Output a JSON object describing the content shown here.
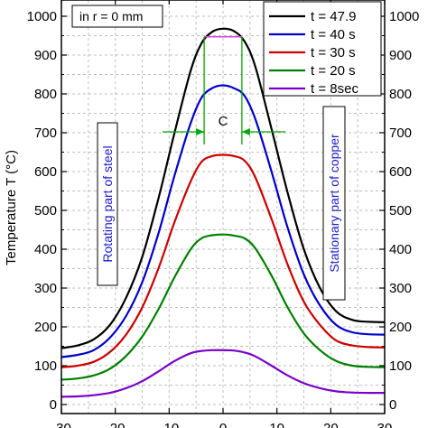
{
  "chart_data": {
    "type": "line",
    "xlabel": "",
    "ylabel": "Temperature  T (°C)",
    "xlim": [
      -30,
      30
    ],
    "ylim": [
      0,
      1000
    ],
    "x_ticks": [
      "-30",
      "-20",
      "-10",
      "0",
      "10",
      "20",
      "30"
    ],
    "y_ticks": [
      "0",
      "100",
      "200",
      "300",
      "400",
      "500",
      "600",
      "700",
      "800",
      "900",
      "1000"
    ],
    "grid": true,
    "legend_position": "top-right",
    "series": [
      {
        "name": "t = 47.9",
        "color": "#000000",
        "x": [
          -30,
          -27,
          -24,
          -21,
          -18,
          -15,
          -12,
          -9,
          -6,
          -4,
          -2,
          0,
          2,
          4,
          6,
          9,
          12,
          15,
          18,
          21,
          24,
          27,
          30
        ],
        "y": [
          145,
          152,
          168,
          205,
          275,
          380,
          530,
          700,
          860,
          930,
          960,
          968,
          962,
          935,
          870,
          710,
          545,
          400,
          300,
          240,
          218,
          213,
          212
        ]
      },
      {
        "name": "t = 40 s",
        "color": "#0000cc",
        "x": [
          -30,
          -27,
          -24,
          -21,
          -18,
          -15,
          -12,
          -9,
          -6,
          -4,
          -2,
          0,
          2,
          4,
          6,
          9,
          12,
          15,
          18,
          21,
          24,
          27,
          30
        ],
        "y": [
          122,
          128,
          140,
          172,
          228,
          315,
          440,
          590,
          725,
          790,
          815,
          822,
          815,
          795,
          735,
          600,
          455,
          335,
          255,
          205,
          186,
          181,
          180
        ]
      },
      {
        "name": "t = 30 s",
        "color": "#cc0000",
        "x": [
          -30,
          -27,
          -24,
          -21,
          -18,
          -15,
          -12,
          -9,
          -6,
          -4,
          -2,
          0,
          2,
          4,
          6,
          9,
          12,
          15,
          18,
          21,
          24,
          27,
          30
        ],
        "y": [
          96,
          100,
          110,
          135,
          180,
          250,
          350,
          470,
          575,
          625,
          640,
          643,
          640,
          628,
          585,
          478,
          360,
          265,
          205,
          165,
          152,
          148,
          147
        ]
      },
      {
        "name": "t = 20 s",
        "color": "#008000",
        "x": [
          -30,
          -27,
          -24,
          -21,
          -18,
          -15,
          -12,
          -9,
          -6,
          -4,
          -2,
          0,
          2,
          4,
          6,
          9,
          12,
          15,
          18,
          21,
          24,
          27,
          30
        ],
        "y": [
          64,
          67,
          75,
          92,
          125,
          175,
          245,
          328,
          400,
          428,
          436,
          438,
          435,
          428,
          402,
          332,
          250,
          183,
          140,
          112,
          100,
          97,
          96
        ]
      },
      {
        "name": "t = 8sec",
        "color": "#7a00cc",
        "x": [
          -30,
          -27,
          -24,
          -21,
          -18,
          -15,
          -12,
          -9,
          -6,
          -4,
          -2,
          0,
          2,
          4,
          6,
          9,
          12,
          15,
          18,
          21,
          24,
          27,
          30
        ],
        "y": [
          20,
          21,
          24,
          30,
          42,
          60,
          85,
          112,
          132,
          138,
          140,
          140,
          139,
          134,
          124,
          100,
          75,
          55,
          42,
          34,
          31,
          30,
          30
        ]
      }
    ],
    "annotations": {
      "top_note": "in r = 0 mm",
      "left_label": "Rotating part of steel",
      "right_label": "Stationary part of copper",
      "width_marker": "C",
      "marker_x": [
        -3.5,
        3.5
      ]
    }
  }
}
